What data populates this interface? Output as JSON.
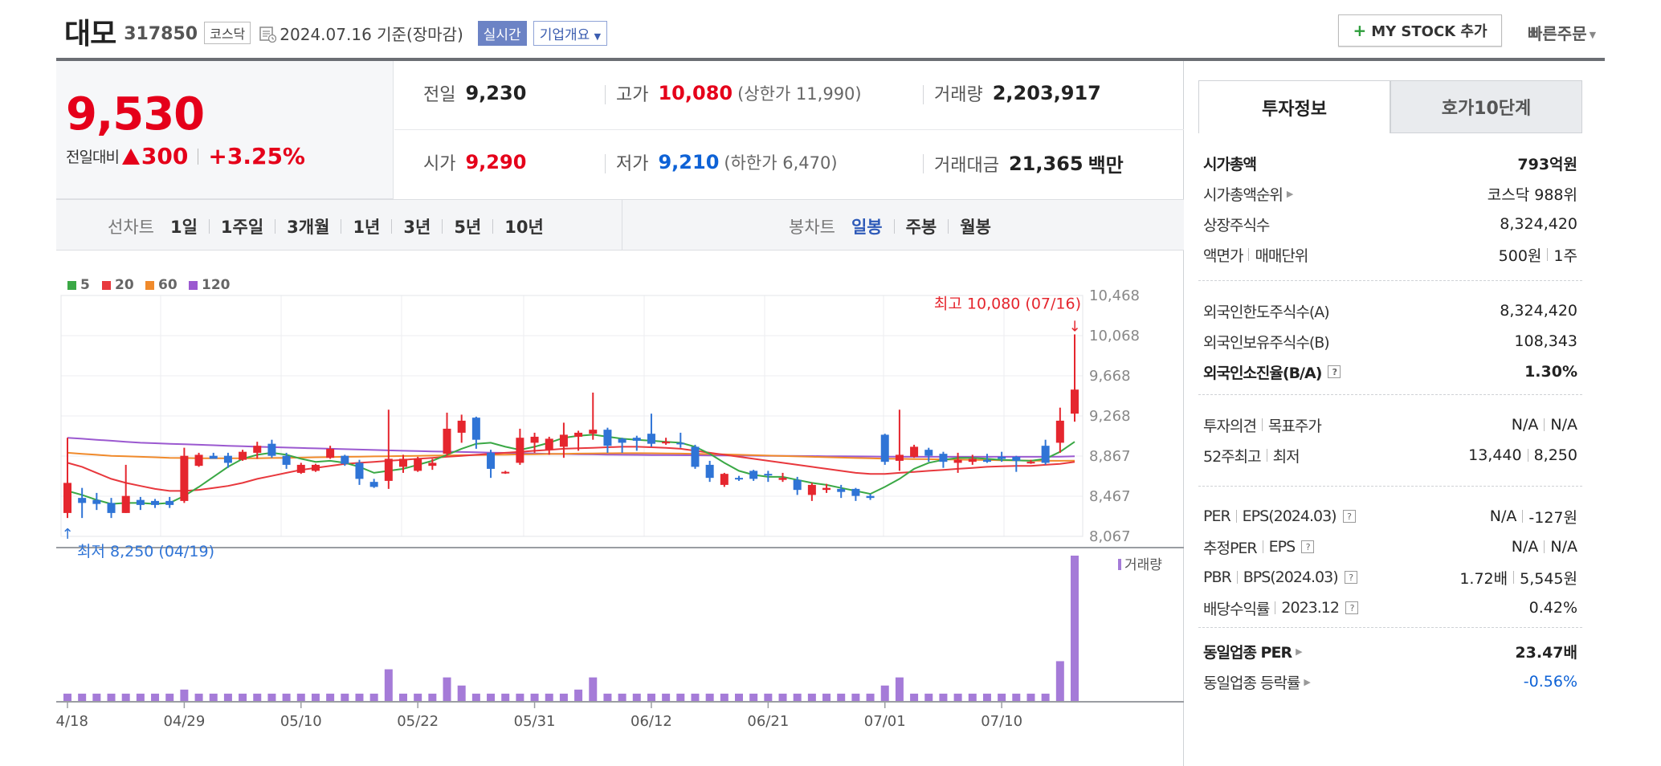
{
  "header": {
    "stock_name": "대모",
    "stock_code": "317850",
    "market": "코스닥",
    "date_text": "2024.07.16 기준(장마감)",
    "realtime_label": "실시간",
    "company_label": "기업개요",
    "mystock_label": "MY STOCK 추가",
    "quick_order_label": "빠른주문"
  },
  "price": {
    "current": "9,530",
    "change_label": "전일대비",
    "change_value": "300",
    "change_pct": "+3.25%"
  },
  "quote": {
    "prev_label": "전일",
    "prev_value": "9,230",
    "high_label": "고가",
    "high_value": "10,080",
    "upper_limit": "(상한가 11,990)",
    "volume_label": "거래량",
    "volume_value": "2,203,917",
    "open_label": "시가",
    "open_value": "9,290",
    "low_label": "저가",
    "low_value": "9,210",
    "lower_limit": "(하한가 6,470)",
    "amount_label": "거래대금",
    "amount_value": "21,365",
    "amount_unit": "백만"
  },
  "period": {
    "line_title": "선차트",
    "line_items": [
      "1일",
      "1주일",
      "3개월",
      "1년",
      "3년",
      "5년",
      "10년"
    ],
    "candle_title": "봉차트",
    "candle_items": [
      "일봉",
      "주봉",
      "월봉"
    ],
    "candle_active": 0
  },
  "chart_data": {
    "type": "candlestick",
    "legend": [
      {
        "name": "5",
        "color": "#3aa845"
      },
      {
        "name": "20",
        "color": "#e8383d"
      },
      {
        "name": "60",
        "color": "#f08a2b"
      },
      {
        "name": "120",
        "color": "#9b59d0"
      }
    ],
    "y_ticks": [
      "10,468",
      "10,068",
      "9,668",
      "9,268",
      "8,867",
      "8,467",
      "8,067"
    ],
    "y_range": [
      8067,
      10468
    ],
    "x_ticks": [
      "04/18",
      "04/29",
      "05/10",
      "05/22",
      "05/31",
      "06/12",
      "06/21",
      "07/01",
      "07/10"
    ],
    "high_annotation": "최고 10,080 (07/16)",
    "low_annotation": "최저 8,250 (04/19)",
    "volume_label": "거래량",
    "candles": [
      {
        "o": 8300,
        "h": 9050,
        "l": 8250,
        "c": 8600
      },
      {
        "o": 8450,
        "h": 8550,
        "l": 8250,
        "c": 8400
      },
      {
        "o": 8430,
        "h": 8500,
        "l": 8330,
        "c": 8390
      },
      {
        "o": 8400,
        "h": 8450,
        "l": 8250,
        "c": 8300
      },
      {
        "o": 8300,
        "h": 8780,
        "l": 8300,
        "c": 8470
      },
      {
        "o": 8430,
        "h": 8460,
        "l": 8330,
        "c": 8380
      },
      {
        "o": 8420,
        "h": 8440,
        "l": 8350,
        "c": 8380
      },
      {
        "o": 8420,
        "h": 8460,
        "l": 8350,
        "c": 8380
      },
      {
        "o": 8420,
        "h": 8950,
        "l": 8400,
        "c": 8870
      },
      {
        "o": 8770,
        "h": 8900,
        "l": 8760,
        "c": 8880
      },
      {
        "o": 8870,
        "h": 8900,
        "l": 8850,
        "c": 8840
      },
      {
        "o": 8870,
        "h": 8900,
        "l": 8750,
        "c": 8800
      },
      {
        "o": 8830,
        "h": 8930,
        "l": 8820,
        "c": 8910
      },
      {
        "o": 8900,
        "h": 9010,
        "l": 8840,
        "c": 8970
      },
      {
        "o": 8990,
        "h": 9030,
        "l": 8850,
        "c": 8870
      },
      {
        "o": 8870,
        "h": 8900,
        "l": 8740,
        "c": 8780
      },
      {
        "o": 8700,
        "h": 8800,
        "l": 8690,
        "c": 8780
      },
      {
        "o": 8720,
        "h": 8790,
        "l": 8710,
        "c": 8780
      },
      {
        "o": 8850,
        "h": 8970,
        "l": 8840,
        "c": 8940
      },
      {
        "o": 8870,
        "h": 8880,
        "l": 8770,
        "c": 8790
      },
      {
        "o": 8800,
        "h": 8830,
        "l": 8580,
        "c": 8640
      },
      {
        "o": 8610,
        "h": 8640,
        "l": 8550,
        "c": 8560
      },
      {
        "o": 8620,
        "h": 9330,
        "l": 8540,
        "c": 8840
      },
      {
        "o": 8760,
        "h": 8880,
        "l": 8700,
        "c": 8840
      },
      {
        "o": 8720,
        "h": 8860,
        "l": 8710,
        "c": 8840
      },
      {
        "o": 8770,
        "h": 8840,
        "l": 8730,
        "c": 8800
      },
      {
        "o": 8890,
        "h": 9300,
        "l": 8870,
        "c": 9140
      },
      {
        "o": 9100,
        "h": 9280,
        "l": 9000,
        "c": 9220
      },
      {
        "o": 9250,
        "h": 9260,
        "l": 8940,
        "c": 9030
      },
      {
        "o": 8900,
        "h": 8930,
        "l": 8650,
        "c": 8740
      },
      {
        "o": 8700,
        "h": 8720,
        "l": 8690,
        "c": 8710
      },
      {
        "o": 8800,
        "h": 9140,
        "l": 8780,
        "c": 9050
      },
      {
        "o": 9000,
        "h": 9100,
        "l": 8900,
        "c": 9060
      },
      {
        "o": 8930,
        "h": 9060,
        "l": 8880,
        "c": 9040
      },
      {
        "o": 8960,
        "h": 9200,
        "l": 8850,
        "c": 9080
      },
      {
        "o": 9060,
        "h": 9120,
        "l": 8920,
        "c": 9100
      },
      {
        "o": 9090,
        "h": 9500,
        "l": 9030,
        "c": 9130
      },
      {
        "o": 9130,
        "h": 9150,
        "l": 8900,
        "c": 8970
      },
      {
        "o": 9040,
        "h": 9050,
        "l": 8900,
        "c": 9000
      },
      {
        "o": 9050,
        "h": 9070,
        "l": 8920,
        "c": 9020
      },
      {
        "o": 9090,
        "h": 9290,
        "l": 8960,
        "c": 8990
      },
      {
        "o": 9010,
        "h": 9050,
        "l": 8980,
        "c": 9010
      },
      {
        "o": 9000,
        "h": 9100,
        "l": 8950,
        "c": 8990
      },
      {
        "o": 8960,
        "h": 8980,
        "l": 8740,
        "c": 8760
      },
      {
        "o": 8780,
        "h": 8820,
        "l": 8610,
        "c": 8650
      },
      {
        "o": 8580,
        "h": 8700,
        "l": 8560,
        "c": 8690
      },
      {
        "o": 8650,
        "h": 8670,
        "l": 8620,
        "c": 8640
      },
      {
        "o": 8720,
        "h": 8730,
        "l": 8620,
        "c": 8640
      },
      {
        "o": 8690,
        "h": 8720,
        "l": 8610,
        "c": 8680
      },
      {
        "o": 8630,
        "h": 8700,
        "l": 8610,
        "c": 8650
      },
      {
        "o": 8630,
        "h": 8660,
        "l": 8480,
        "c": 8530
      },
      {
        "o": 8480,
        "h": 8600,
        "l": 8420,
        "c": 8580
      },
      {
        "o": 8530,
        "h": 8590,
        "l": 8500,
        "c": 8550
      },
      {
        "o": 8540,
        "h": 8580,
        "l": 8450,
        "c": 8510
      },
      {
        "o": 8540,
        "h": 8550,
        "l": 8420,
        "c": 8470
      },
      {
        "o": 8470,
        "h": 8490,
        "l": 8430,
        "c": 8450
      },
      {
        "o": 9080,
        "h": 9090,
        "l": 8780,
        "c": 8810
      },
      {
        "o": 8820,
        "h": 9330,
        "l": 8720,
        "c": 8880
      },
      {
        "o": 8860,
        "h": 8980,
        "l": 8850,
        "c": 8960
      },
      {
        "o": 8930,
        "h": 8950,
        "l": 8810,
        "c": 8870
      },
      {
        "o": 8890,
        "h": 8910,
        "l": 8750,
        "c": 8810
      },
      {
        "o": 8800,
        "h": 8900,
        "l": 8700,
        "c": 8830
      },
      {
        "o": 8810,
        "h": 8880,
        "l": 8780,
        "c": 8840
      },
      {
        "o": 8830,
        "h": 8890,
        "l": 8800,
        "c": 8810
      },
      {
        "o": 8860,
        "h": 8910,
        "l": 8810,
        "c": 8840
      },
      {
        "o": 8860,
        "h": 8870,
        "l": 8710,
        "c": 8820
      },
      {
        "o": 8800,
        "h": 8830,
        "l": 8790,
        "c": 8810
      },
      {
        "o": 8970,
        "h": 9030,
        "l": 8780,
        "c": 8800
      },
      {
        "o": 9000,
        "h": 9350,
        "l": 8900,
        "c": 9220
      },
      {
        "o": 9290,
        "h": 10080,
        "l": 9210,
        "c": 9530
      }
    ],
    "volumes": [
      1,
      1,
      1,
      1,
      1,
      1,
      1,
      1,
      1.5,
      1,
      1,
      1,
      1,
      1,
      1,
      1,
      1,
      1,
      1,
      1,
      1,
      1,
      4,
      1,
      1,
      1,
      3,
      2,
      1,
      1,
      1,
      1,
      1,
      1,
      1,
      1.5,
      3,
      1,
      1,
      1,
      1,
      1,
      1,
      1,
      1,
      1,
      1,
      1,
      1,
      1,
      1,
      1,
      1,
      1,
      1,
      1,
      2,
      3,
      1,
      1,
      1,
      1,
      1,
      1,
      1,
      1,
      1,
      1,
      5,
      18
    ],
    "ma5": [
      8520,
      8480,
      8430,
      8390,
      8400,
      8400,
      8390,
      8400,
      8470,
      8560,
      8660,
      8760,
      8840,
      8880,
      8900,
      8880,
      8840,
      8810,
      8820,
      8800,
      8760,
      8700,
      8720,
      8740,
      8780,
      8820,
      8880,
      8940,
      8990,
      9000,
      8960,
      8930,
      8960,
      9000,
      9050,
      9070,
      9080,
      9060,
      9040,
      9030,
      9020,
      9010,
      9000,
      8960,
      8890,
      8800,
      8720,
      8680,
      8660,
      8660,
      8630,
      8600,
      8580,
      8550,
      8520,
      8490,
      8560,
      8640,
      8740,
      8800,
      8830,
      8850,
      8850,
      8840,
      8830,
      8825,
      8820,
      8840,
      8910,
      9010
    ],
    "ma20": [
      8800,
      8760,
      8700,
      8640,
      8600,
      8570,
      8540,
      8520,
      8520,
      8530,
      8550,
      8570,
      8600,
      8640,
      8670,
      8700,
      8730,
      8750,
      8770,
      8790,
      8800,
      8810,
      8820,
      8830,
      8840,
      8850,
      8860,
      8870,
      8880,
      8890,
      8900,
      8910,
      8920,
      8930,
      8940,
      8945,
      8950,
      8955,
      8960,
      8960,
      8955,
      8950,
      8940,
      8920,
      8900,
      8880,
      8860,
      8840,
      8820,
      8800,
      8780,
      8760,
      8740,
      8720,
      8700,
      8690,
      8690,
      8700,
      8710,
      8720,
      8730,
      8740,
      8750,
      8760,
      8765,
      8770,
      8770,
      8780,
      8790,
      8810
    ],
    "ma60": [
      8900,
      8890,
      8880,
      8870,
      8865,
      8860,
      8855,
      8850,
      8848,
      8846,
      8845,
      8845,
      8845,
      8846,
      8848,
      8850,
      8852,
      8855,
      8858,
      8860,
      8862,
      8864,
      8866,
      8868,
      8870,
      8872,
      8874,
      8876,
      8878,
      8880,
      8882,
      8884,
      8886,
      8888,
      8890,
      8892,
      8894,
      8895,
      8896,
      8896,
      8895,
      8894,
      8892,
      8890,
      8887,
      8884,
      8880,
      8876,
      8872,
      8868,
      8864,
      8860,
      8856,
      8852,
      8848,
      8845,
      8842,
      8840,
      8838,
      8836,
      8834,
      8832,
      8830,
      8828,
      8826,
      8824,
      8822,
      8820,
      8820,
      8822
    ],
    "ma120": [
      9050,
      9040,
      9030,
      9020,
      9010,
      9000,
      8995,
      8990,
      8985,
      8980,
      8975,
      8970,
      8965,
      8960,
      8956,
      8952,
      8948,
      8944,
      8940,
      8936,
      8932,
      8928,
      8924,
      8920,
      8917,
      8914,
      8911,
      8908,
      8905,
      8902,
      8899,
      8896,
      8893,
      8890,
      8888,
      8886,
      8884,
      8882,
      8880,
      8879,
      8878,
      8877,
      8876,
      8875,
      8874,
      8873,
      8872,
      8871,
      8870,
      8869,
      8868,
      8867,
      8866,
      8865,
      8864,
      8863,
      8862,
      8861,
      8860,
      8860,
      8860,
      8860,
      8860,
      8860,
      8860,
      8860,
      8860,
      8860,
      8862,
      8865
    ]
  },
  "info": {
    "tab_active": "투자정보",
    "tab_other": "호가10단계",
    "market_cap_label": "시가총액",
    "market_cap_value": "793억원",
    "market_cap_rank_label": "시가총액순위",
    "market_cap_rank_value": "코스닥 988위",
    "shares_label": "상장주식수",
    "shares_value": "8,324,420",
    "face_label": "액면가",
    "unit_label": "매매단위",
    "face_value": "500원",
    "unit_value": "1주",
    "foreign_limit_label": "외국인한도주식수(A)",
    "foreign_limit_value": "8,324,420",
    "foreign_hold_label": "외국인보유주식수(B)",
    "foreign_hold_value": "108,343",
    "foreign_ratio_label": "외국인소진율(B/A)",
    "foreign_ratio_value": "1.30%",
    "opinion_label": "투자의견",
    "target_label": "목표주가",
    "opinion_value": "N/A",
    "target_value": "N/A",
    "w52_high_label": "52주최고",
    "w52_low_label": "최저",
    "w52_high_value": "13,440",
    "w52_low_value": "8,250",
    "per_label": "PER",
    "eps_label": "EPS(2024.03)",
    "per_value": "N/A",
    "eps_value": "-127원",
    "est_per_label": "추정PER",
    "est_eps_label": "EPS",
    "est_per_value": "N/A",
    "est_eps_value": "N/A",
    "pbr_label": "PBR",
    "bps_label": "BPS(2024.03)",
    "pbr_value": "1.72배",
    "bps_value": "5,545원",
    "div_label": "배당수익률",
    "div_year_label": "2023.12",
    "div_value": "0.42%",
    "ind_per_label": "동일업종 PER",
    "ind_per_value": "23.47배",
    "ind_chg_label": "동일업종 등락률",
    "ind_chg_value": "-0.56%",
    "q_mark": "?"
  }
}
